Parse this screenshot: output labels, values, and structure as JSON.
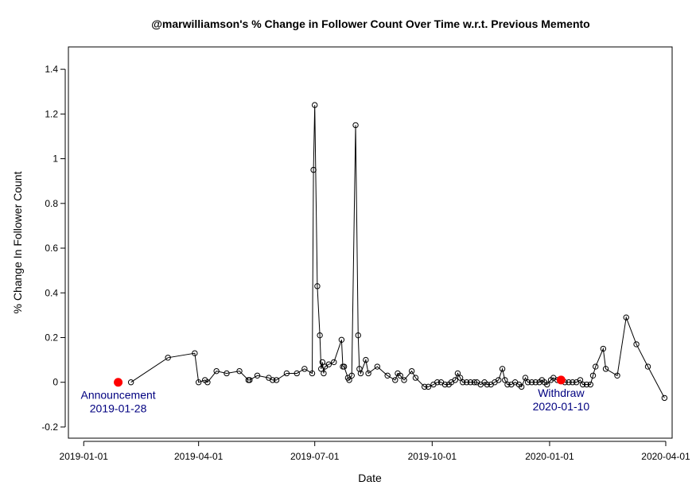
{
  "chart_data": {
    "type": "line",
    "title": "@marwilliamson's % Change in Follower Count Over Time w.r.t. Previous Memento",
    "xlabel": "Date",
    "ylabel": "% Change In Follower Count",
    "xlim": [
      "2018-12-20",
      "2020-04-06"
    ],
    "ylim": [
      -0.25,
      1.5
    ],
    "x_ticks": [
      "2019-01-01",
      "2019-04-01",
      "2019-07-01",
      "2019-10-01",
      "2020-01-01",
      "2020-04-01"
    ],
    "y_ticks": [
      -0.2,
      0,
      0.2,
      0.4,
      0.6,
      0.8,
      1,
      1.2,
      1.4
    ],
    "y_tick_labels": [
      "-0.2",
      "0",
      "0.2",
      "0.4",
      "0.6",
      "0.8",
      "1",
      "1.2",
      "1.4"
    ],
    "grid": false,
    "colors": {
      "series": "#000000",
      "highlight": "#ff0000",
      "annotation": "#000080"
    },
    "series": [
      {
        "points": [
          [
            "2019-02-07",
            0.0
          ],
          [
            "2019-03-08",
            0.11
          ],
          [
            "2019-03-29",
            0.13
          ],
          [
            "2019-04-01",
            0.0
          ],
          [
            "2019-04-06",
            0.01
          ],
          [
            "2019-04-08",
            0.0
          ],
          [
            "2019-04-15",
            0.05
          ],
          [
            "2019-04-23",
            0.04
          ],
          [
            "2019-05-03",
            0.05
          ],
          [
            "2019-05-10",
            0.01
          ],
          [
            "2019-05-11",
            0.01
          ],
          [
            "2019-05-17",
            0.03
          ],
          [
            "2019-05-26",
            0.02
          ],
          [
            "2019-05-29",
            0.01
          ],
          [
            "2019-06-01",
            0.01
          ],
          [
            "2019-06-09",
            0.04
          ],
          [
            "2019-06-17",
            0.04
          ],
          [
            "2019-06-23",
            0.06
          ],
          [
            "2019-06-29",
            0.04
          ],
          [
            "2019-06-30",
            0.95
          ],
          [
            "2019-07-01",
            1.24
          ],
          [
            "2019-07-03",
            0.43
          ],
          [
            "2019-07-05",
            0.21
          ],
          [
            "2019-07-06",
            0.06
          ],
          [
            "2019-07-07",
            0.09
          ],
          [
            "2019-07-08",
            0.04
          ],
          [
            "2019-07-09",
            0.07
          ],
          [
            "2019-07-12",
            0.08
          ],
          [
            "2019-07-16",
            0.09
          ],
          [
            "2019-07-22",
            0.19
          ],
          [
            "2019-07-23",
            0.07
          ],
          [
            "2019-07-24",
            0.07
          ],
          [
            "2019-07-27",
            0.02
          ],
          [
            "2019-07-28",
            0.01
          ],
          [
            "2019-07-30",
            0.03
          ],
          [
            "2019-08-02",
            1.15
          ],
          [
            "2019-08-04",
            0.21
          ],
          [
            "2019-08-05",
            0.06
          ],
          [
            "2019-08-06",
            0.04
          ],
          [
            "2019-08-10",
            0.1
          ],
          [
            "2019-08-12",
            0.04
          ],
          [
            "2019-08-19",
            0.07
          ],
          [
            "2019-08-27",
            0.03
          ],
          [
            "2019-09-02",
            0.01
          ],
          [
            "2019-09-04",
            0.04
          ],
          [
            "2019-09-06",
            0.03
          ],
          [
            "2019-09-09",
            0.01
          ],
          [
            "2019-09-15",
            0.05
          ],
          [
            "2019-09-18",
            0.02
          ],
          [
            "2019-09-25",
            -0.02
          ],
          [
            "2019-09-28",
            -0.02
          ],
          [
            "2019-10-02",
            -0.01
          ],
          [
            "2019-10-05",
            0.0
          ],
          [
            "2019-10-08",
            0.0
          ],
          [
            "2019-10-11",
            -0.01
          ],
          [
            "2019-10-14",
            -0.01
          ],
          [
            "2019-10-16",
            0.0
          ],
          [
            "2019-10-19",
            0.01
          ],
          [
            "2019-10-21",
            0.04
          ],
          [
            "2019-10-23",
            0.02
          ],
          [
            "2019-10-25",
            0.0
          ],
          [
            "2019-10-28",
            0.0
          ],
          [
            "2019-10-31",
            0.0
          ],
          [
            "2019-11-03",
            0.0
          ],
          [
            "2019-11-05",
            0.0
          ],
          [
            "2019-11-08",
            -0.01
          ],
          [
            "2019-11-11",
            0.0
          ],
          [
            "2019-11-13",
            -0.01
          ],
          [
            "2019-11-16",
            -0.01
          ],
          [
            "2019-11-19",
            0.0
          ],
          [
            "2019-11-22",
            0.01
          ],
          [
            "2019-11-25",
            0.06
          ],
          [
            "2019-11-27",
            0.01
          ],
          [
            "2019-11-29",
            -0.01
          ],
          [
            "2019-12-02",
            -0.01
          ],
          [
            "2019-12-05",
            0.0
          ],
          [
            "2019-12-08",
            -0.01
          ],
          [
            "2019-12-10",
            -0.02
          ],
          [
            "2019-12-13",
            0.02
          ],
          [
            "2019-12-15",
            0.0
          ],
          [
            "2019-12-18",
            0.0
          ],
          [
            "2019-12-21",
            0.0
          ],
          [
            "2019-12-24",
            0.0
          ],
          [
            "2019-12-26",
            0.01
          ],
          [
            "2019-12-28",
            0.0
          ],
          [
            "2019-12-30",
            -0.01
          ],
          [
            "2020-01-02",
            0.01
          ],
          [
            "2020-01-04",
            0.02
          ],
          [
            "2020-01-07",
            0.01
          ],
          [
            "2020-01-13",
            0.0
          ],
          [
            "2020-01-16",
            0.0
          ],
          [
            "2020-01-19",
            0.0
          ],
          [
            "2020-01-22",
            0.0
          ],
          [
            "2020-01-25",
            0.01
          ],
          [
            "2020-01-27",
            -0.01
          ],
          [
            "2020-01-30",
            -0.01
          ],
          [
            "2020-02-02",
            -0.01
          ],
          [
            "2020-02-04",
            0.03
          ],
          [
            "2020-02-06",
            0.07
          ],
          [
            "2020-02-12",
            0.15
          ],
          [
            "2020-02-14",
            0.06
          ],
          [
            "2020-02-23",
            0.03
          ],
          [
            "2020-03-01",
            0.29
          ],
          [
            "2020-03-09",
            0.17
          ],
          [
            "2020-03-18",
            0.07
          ],
          [
            "2020-03-31",
            -0.07
          ]
        ]
      }
    ],
    "highlights": [
      {
        "x": "2019-01-28",
        "y": 0.0,
        "label_line1": "Announcement",
        "label_line2": "2019-01-28"
      },
      {
        "x": "2020-01-10",
        "y": 0.01,
        "label_line1": "Withdraw",
        "label_line2": "2020-01-10"
      }
    ]
  }
}
